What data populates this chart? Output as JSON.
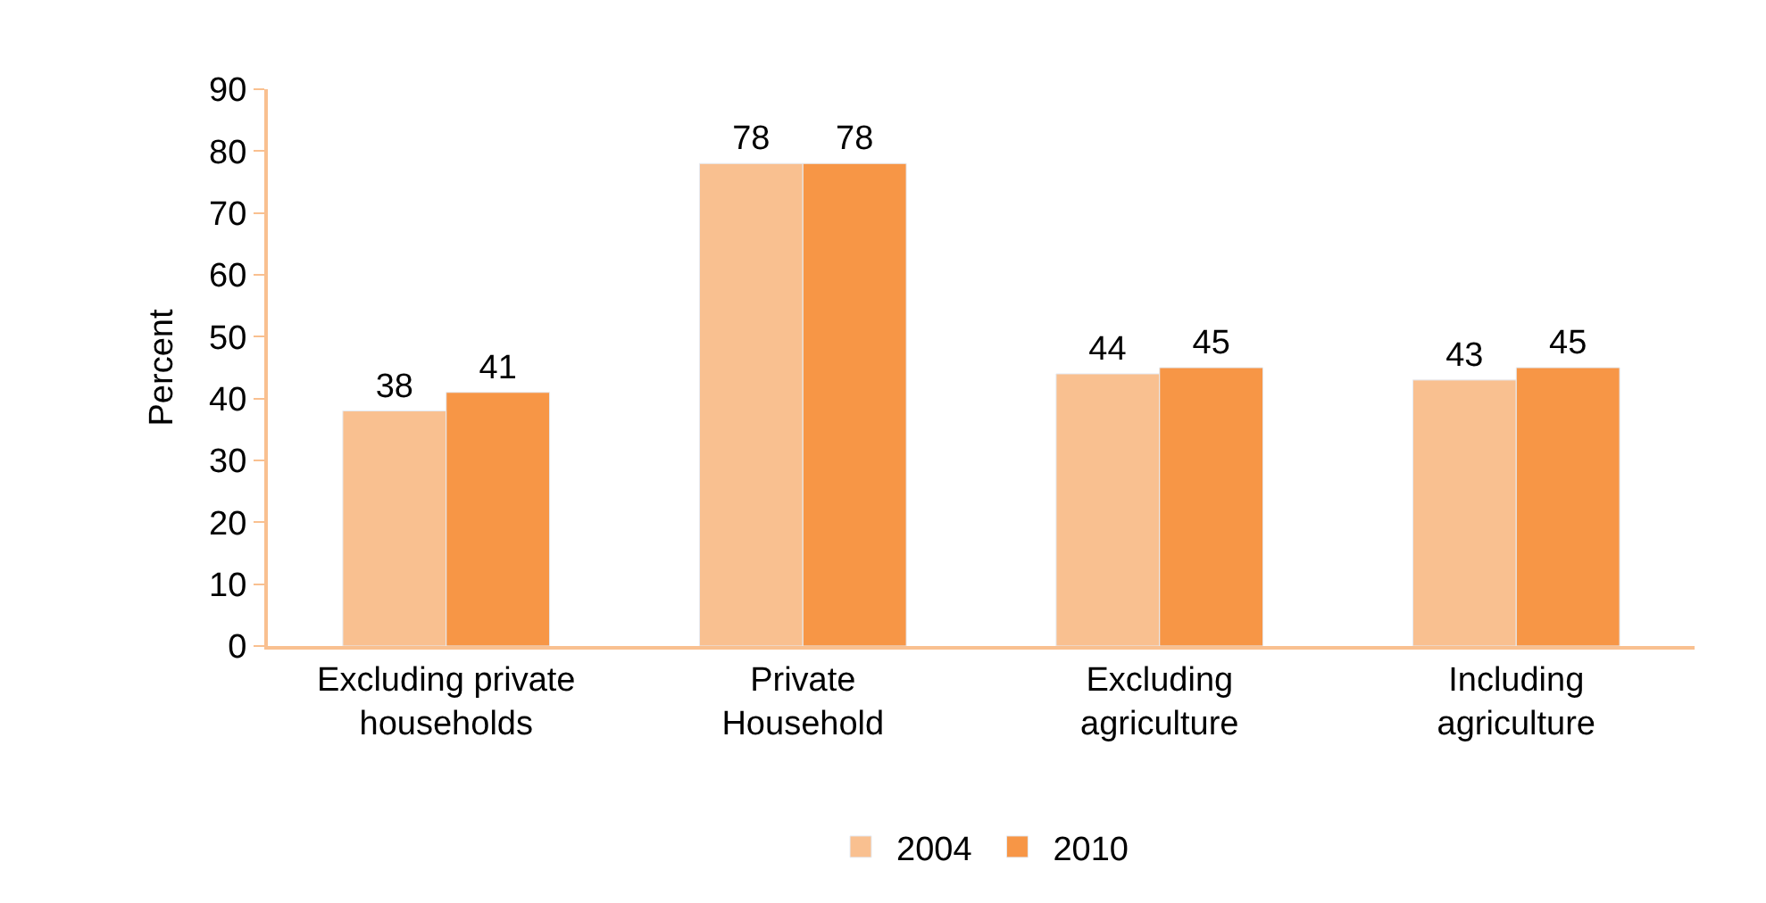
{
  "chart_data": {
    "type": "bar",
    "ylabel": "Percent",
    "categories": [
      "Excluding private households",
      "Private Household",
      "Excluding agriculture",
      "Including agriculture"
    ],
    "series": [
      {
        "name": "2004",
        "color": "#f9c090",
        "values": [
          38,
          78,
          44,
          43
        ]
      },
      {
        "name": "2010",
        "color": "#f79646",
        "values": [
          41,
          78,
          45,
          45
        ]
      }
    ],
    "ylim": [
      0,
      90
    ],
    "yticks": [
      0,
      10,
      20,
      30,
      40,
      50,
      60,
      70,
      80,
      90
    ],
    "data_labels": true,
    "legend": "bottom"
  }
}
